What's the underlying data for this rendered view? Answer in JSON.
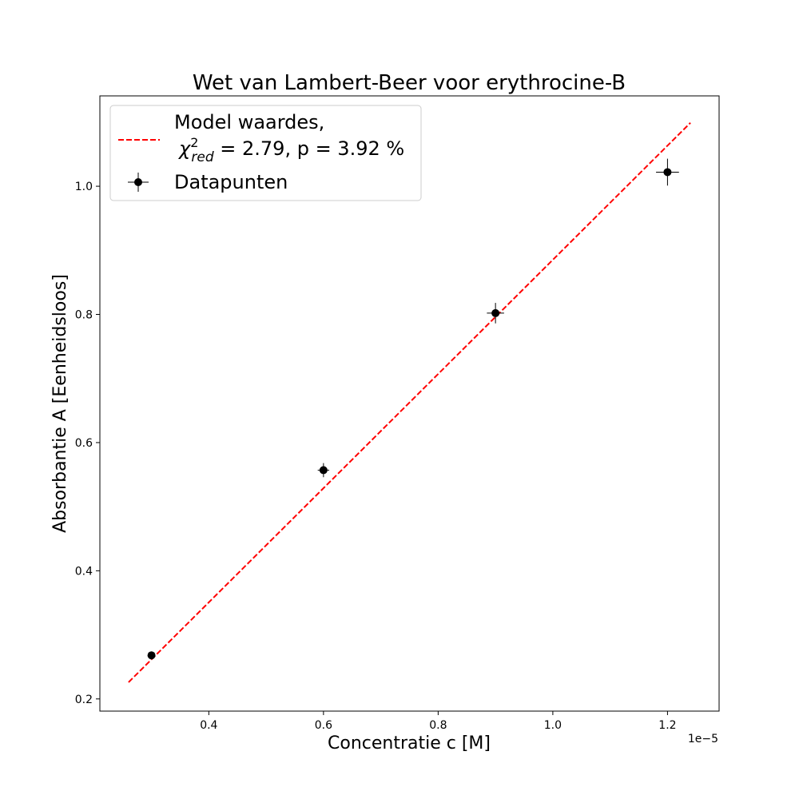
{
  "chart_data": {
    "type": "scatter",
    "title": "Wet van Lambert-Beer voor erythrocine-B",
    "xlabel": "Concentratie c [M]",
    "ylabel": "Absorbantie A [Eenheidsloos]",
    "x_offset_text": "1e−5",
    "xlim": [
      2.1e-06,
      1.29e-05
    ],
    "ylim": [
      0.181,
      1.141
    ],
    "x_ticks": [
      4e-06,
      6e-06,
      8e-06,
      1e-05,
      1.2e-05
    ],
    "x_tick_labels": [
      "0.4",
      "0.6",
      "0.8",
      "1.0",
      "1.2"
    ],
    "y_ticks": [
      0.2,
      0.4,
      0.6,
      0.8,
      1.0
    ],
    "y_tick_labels": [
      "0.2",
      "0.4",
      "0.6",
      "0.8",
      "1.0"
    ],
    "grid": false,
    "legend_position": "top-left",
    "legend": {
      "model_line1": "Model waardes,",
      "model_chi_symbol": "χ",
      "model_chi_sup": "2",
      "model_chi_sub": "red",
      "model_chi_rest": " = 2.79, p = 3.92 %",
      "data_label": "Datapunten"
    },
    "series": [
      {
        "kind": "line",
        "style": "dashed",
        "color": "#ff0000",
        "x": [
          2.6e-06,
          1.24e-05
        ],
        "y": [
          0.226,
          1.099
        ]
      },
      {
        "kind": "errorbar",
        "color": "#000000",
        "x": [
          3e-06,
          6e-06,
          9e-06,
          1.2e-05
        ],
        "y": [
          0.268,
          0.557,
          0.802,
          1.022
        ],
        "yerr": [
          0.006,
          0.011,
          0.016,
          0.021
        ],
        "xerr": [
          5e-08,
          1e-07,
          1.5e-07,
          2e-07
        ]
      }
    ]
  }
}
